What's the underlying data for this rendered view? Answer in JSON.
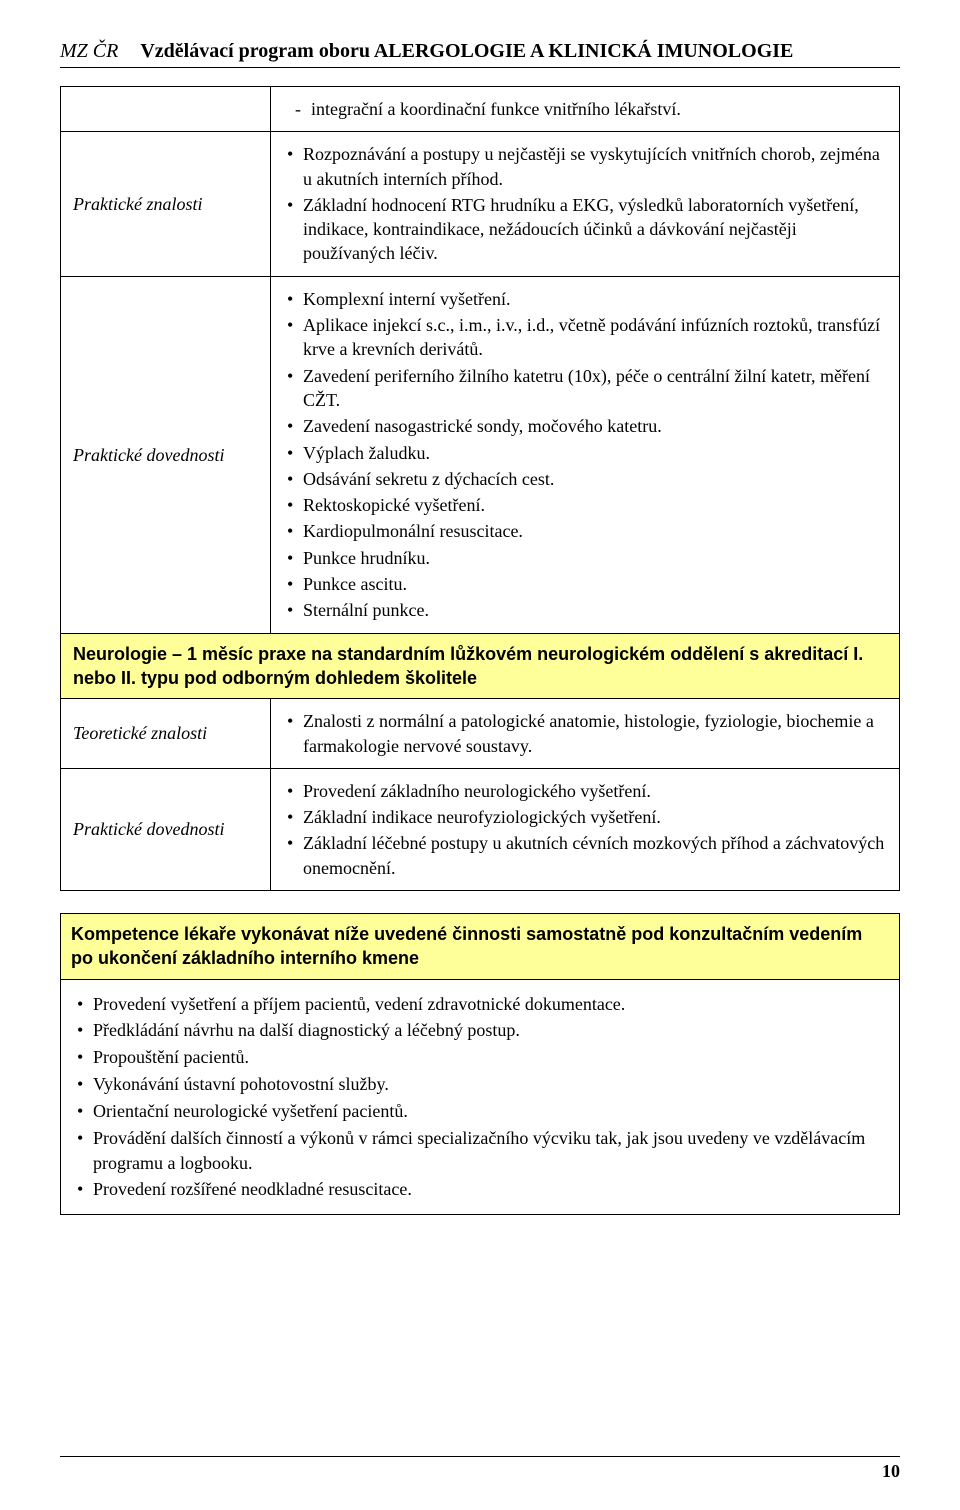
{
  "colors": {
    "highlight_bg": "#ffff99",
    "border": "#000000",
    "text": "#000000",
    "page_bg": "#ffffff"
  },
  "typography": {
    "body_font": "Times New Roman",
    "highlight_font": "Arial",
    "body_size_pt": 14,
    "header_size_pt": 15
  },
  "header": {
    "left": "MZ ČR",
    "right": "Vzdělávací program oboru ALERGOLOGIE A KLINICKÁ IMUNOLOGIE"
  },
  "table1": {
    "row0": {
      "dash_item": "integrační a koordinační funkce vnitřního lékařství."
    },
    "row1": {
      "label": "Praktické znalosti",
      "items": [
        "Rozpoznávání a postupy u nejčastěji se vyskytujících vnitřních chorob, zejména u akutních interních příhod.",
        "Základní hodnocení RTG hrudníku a EKG, výsledků laboratorních vyšetření, indikace, kontraindikace, nežádoucích účinků a dávkování nejčastěji používaných léčiv."
      ]
    },
    "row2": {
      "label": "Praktické dovednosti",
      "items": [
        "Komplexní interní vyšetření.",
        "Aplikace injekcí s.c., i.m., i.v., i.d., včetně podávání infúzních roztoků, transfúzí krve a krevních derivátů.",
        "Zavedení periferního žilního katetru (10x), péče o centrální žilní katetr, měření CŽT.",
        "Zavedení nasogastrické sondy, močového katetru.",
        "Výplach žaludku.",
        "Odsávání sekretu z dýchacích cest.",
        "Rektoskopické vyšetření.",
        "Kardiopulmonální resuscitace.",
        "Punkce hrudníku.",
        "Punkce ascitu.",
        "Sternální punkce."
      ]
    },
    "row3_highlight": "Neurologie – 1 měsíc praxe na standardním lůžkovém neurologickém oddělení s akreditací I. nebo II. typu pod odborným dohledem školitele",
    "row4": {
      "label": "Teoretické znalosti",
      "items": [
        "Znalosti z normální a patologické anatomie, histologie, fyziologie, biochemie a farmakologie nervové soustavy."
      ]
    },
    "row5": {
      "label": "Praktické dovednosti",
      "items": [
        "Provedení základního neurologického vyšetření.",
        "Základní indikace neurofyziologických vyšetření.",
        "Základní léčebné postupy u akutních cévních mozkových příhod a záchvatových onemocnění."
      ]
    }
  },
  "kompetence": {
    "title": "Kompetence lékaře vykonávat níže uvedené činnosti samostatně pod konzultačním vedením po ukončení základního interního kmene",
    "items": [
      "Provedení vyšetření a příjem pacientů, vedení zdravotnické dokumentace.",
      "Předkládání návrhu na další diagnostický a léčebný postup.",
      "Propouštění pacientů.",
      "Vykonávání ústavní pohotovostní služby.",
      "Orientační neurologické vyšetření pacientů.",
      "Provádění dalších činností a výkonů v rámci specializačního výcviku tak, jak jsou uvedeny ve vzdělávacím programu a logbooku.",
      "Provedení rozšířené neodkladné resuscitace."
    ]
  },
  "page_number": "10"
}
